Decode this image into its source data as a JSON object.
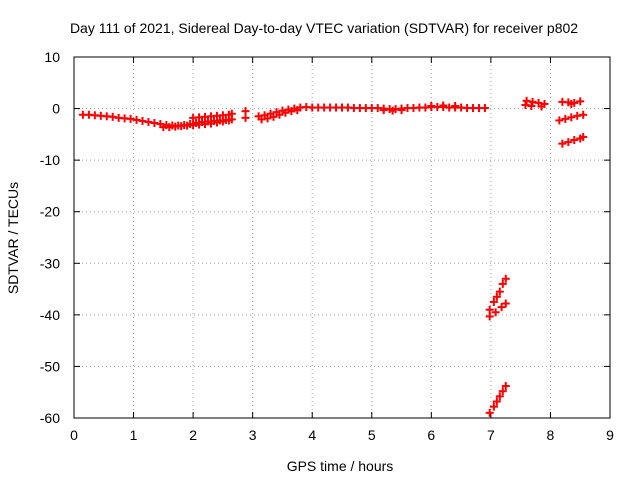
{
  "chart_data": {
    "type": "scatter",
    "title": "Day 111 of 2021, Sidereal Day-to-day VTEC variation (SDTVAR) for receiver p802",
    "xlabel": "GPS time / hours",
    "ylabel": "SDTVAR / TECUs",
    "xlim": [
      0,
      9
    ],
    "ylim": [
      -60,
      10
    ],
    "xticks": [
      0,
      1,
      2,
      3,
      4,
      5,
      6,
      7,
      8,
      9
    ],
    "yticks": [
      10,
      0,
      -10,
      -20,
      -30,
      -40,
      -50,
      -60
    ],
    "grid": true,
    "marker": "+",
    "color": "#ff0000",
    "series": [
      {
        "points": [
          [
            0.15,
            -1.2
          ],
          [
            0.25,
            -1.2
          ],
          [
            0.35,
            -1.3
          ],
          [
            0.45,
            -1.4
          ],
          [
            0.55,
            -1.5
          ],
          [
            0.65,
            -1.6
          ],
          [
            0.75,
            -1.8
          ],
          [
            0.85,
            -1.9
          ],
          [
            0.95,
            -2.0
          ],
          [
            1.05,
            -2.2
          ],
          [
            1.15,
            -2.4
          ],
          [
            1.25,
            -2.6
          ],
          [
            1.35,
            -2.8
          ],
          [
            1.45,
            -3.0
          ],
          [
            1.55,
            -3.2
          ],
          [
            1.65,
            -3.3
          ],
          [
            1.75,
            -3.3
          ],
          [
            1.85,
            -3.2
          ],
          [
            1.95,
            -3.0
          ],
          [
            2.05,
            -2.8
          ],
          [
            2.15,
            -2.6
          ],
          [
            2.25,
            -2.5
          ],
          [
            2.35,
            -2.4
          ],
          [
            2.45,
            -2.3
          ],
          [
            2.55,
            -2.2
          ],
          [
            2.65,
            -2.1
          ],
          [
            1.5,
            -3.6
          ],
          [
            1.6,
            -3.6
          ],
          [
            1.7,
            -3.5
          ],
          [
            1.8,
            -3.4
          ],
          [
            1.9,
            -3.3
          ],
          [
            2.0,
            -3.2
          ],
          [
            2.1,
            -3.1
          ],
          [
            2.2,
            -3.0
          ],
          [
            2.3,
            -2.9
          ],
          [
            2.4,
            -2.7
          ],
          [
            2.5,
            -2.5
          ],
          [
            2.6,
            -2.3
          ],
          [
            2.0,
            -1.8
          ],
          [
            2.1,
            -1.7
          ],
          [
            2.2,
            -1.6
          ],
          [
            2.3,
            -1.5
          ],
          [
            2.4,
            -1.4
          ],
          [
            2.5,
            -1.3
          ],
          [
            2.6,
            -1.2
          ],
          [
            2.65,
            -1.0
          ],
          [
            2.88,
            -1.8
          ],
          [
            2.88,
            -0.5
          ],
          [
            3.1,
            -1.5
          ],
          [
            3.2,
            -1.3
          ],
          [
            3.3,
            -1.0
          ],
          [
            3.4,
            -0.7
          ],
          [
            3.5,
            -0.4
          ],
          [
            3.6,
            -0.2
          ],
          [
            3.7,
            0.0
          ],
          [
            3.8,
            0.2
          ],
          [
            3.9,
            0.3
          ],
          [
            3.15,
            -2.1
          ],
          [
            3.25,
            -1.9
          ],
          [
            3.35,
            -1.6
          ],
          [
            3.45,
            -1.2
          ],
          [
            3.55,
            -0.8
          ],
          [
            3.65,
            -0.5
          ],
          [
            3.75,
            -0.3
          ],
          [
            4.0,
            0.2
          ],
          [
            4.1,
            0.2
          ],
          [
            4.2,
            0.2
          ],
          [
            4.3,
            0.2
          ],
          [
            4.4,
            0.2
          ],
          [
            4.5,
            0.2
          ],
          [
            4.6,
            0.2
          ],
          [
            4.7,
            0.1
          ],
          [
            4.8,
            0.1
          ],
          [
            4.9,
            0.1
          ],
          [
            5.0,
            0.1
          ],
          [
            5.1,
            0.1
          ],
          [
            5.2,
            0.0
          ],
          [
            5.3,
            -0.1
          ],
          [
            5.4,
            -0.1
          ],
          [
            5.5,
            0.0
          ],
          [
            5.6,
            0.1
          ],
          [
            5.7,
            0.1
          ],
          [
            5.8,
            0.2
          ],
          [
            5.9,
            0.2
          ],
          [
            6.0,
            0.3
          ],
          [
            6.1,
            0.3
          ],
          [
            6.2,
            0.3
          ],
          [
            6.3,
            0.2
          ],
          [
            6.4,
            0.2
          ],
          [
            6.5,
            0.2
          ],
          [
            6.6,
            0.1
          ],
          [
            6.7,
            0.1
          ],
          [
            6.8,
            0.1
          ],
          [
            6.9,
            0.1
          ],
          [
            5.2,
            -0.3
          ],
          [
            5.35,
            -0.4
          ],
          [
            5.5,
            -0.3
          ],
          [
            6.0,
            0.5
          ],
          [
            6.2,
            0.6
          ],
          [
            6.4,
            0.5
          ],
          [
            7.6,
            1.5
          ],
          [
            7.7,
            1.3
          ],
          [
            7.8,
            1.1
          ],
          [
            7.9,
            0.9
          ],
          [
            7.58,
            0.7
          ],
          [
            7.68,
            0.5
          ],
          [
            7.85,
            0.4
          ],
          [
            8.2,
            1.3
          ],
          [
            8.3,
            1.2
          ],
          [
            8.4,
            1.1
          ],
          [
            8.5,
            1.4
          ],
          [
            8.35,
            0.9
          ],
          [
            8.15,
            -2.3
          ],
          [
            8.25,
            -2.0
          ],
          [
            8.35,
            -1.7
          ],
          [
            8.45,
            -1.4
          ],
          [
            8.55,
            -1.2
          ],
          [
            8.2,
            -6.8
          ],
          [
            8.3,
            -6.5
          ],
          [
            8.4,
            -6.1
          ],
          [
            8.5,
            -5.8
          ],
          [
            8.55,
            -5.5
          ],
          [
            6.98,
            -39.0
          ],
          [
            7.05,
            -37.5
          ],
          [
            7.1,
            -36.5
          ],
          [
            7.15,
            -35.5
          ],
          [
            7.2,
            -34.0
          ],
          [
            7.25,
            -33.0
          ],
          [
            6.98,
            -40.3
          ],
          [
            7.08,
            -39.5
          ],
          [
            7.18,
            -38.5
          ],
          [
            7.25,
            -37.8
          ],
          [
            6.98,
            -59.0
          ],
          [
            7.05,
            -57.8
          ],
          [
            7.1,
            -56.8
          ],
          [
            7.15,
            -55.8
          ],
          [
            7.2,
            -54.8
          ],
          [
            7.25,
            -53.8
          ]
        ]
      }
    ]
  }
}
